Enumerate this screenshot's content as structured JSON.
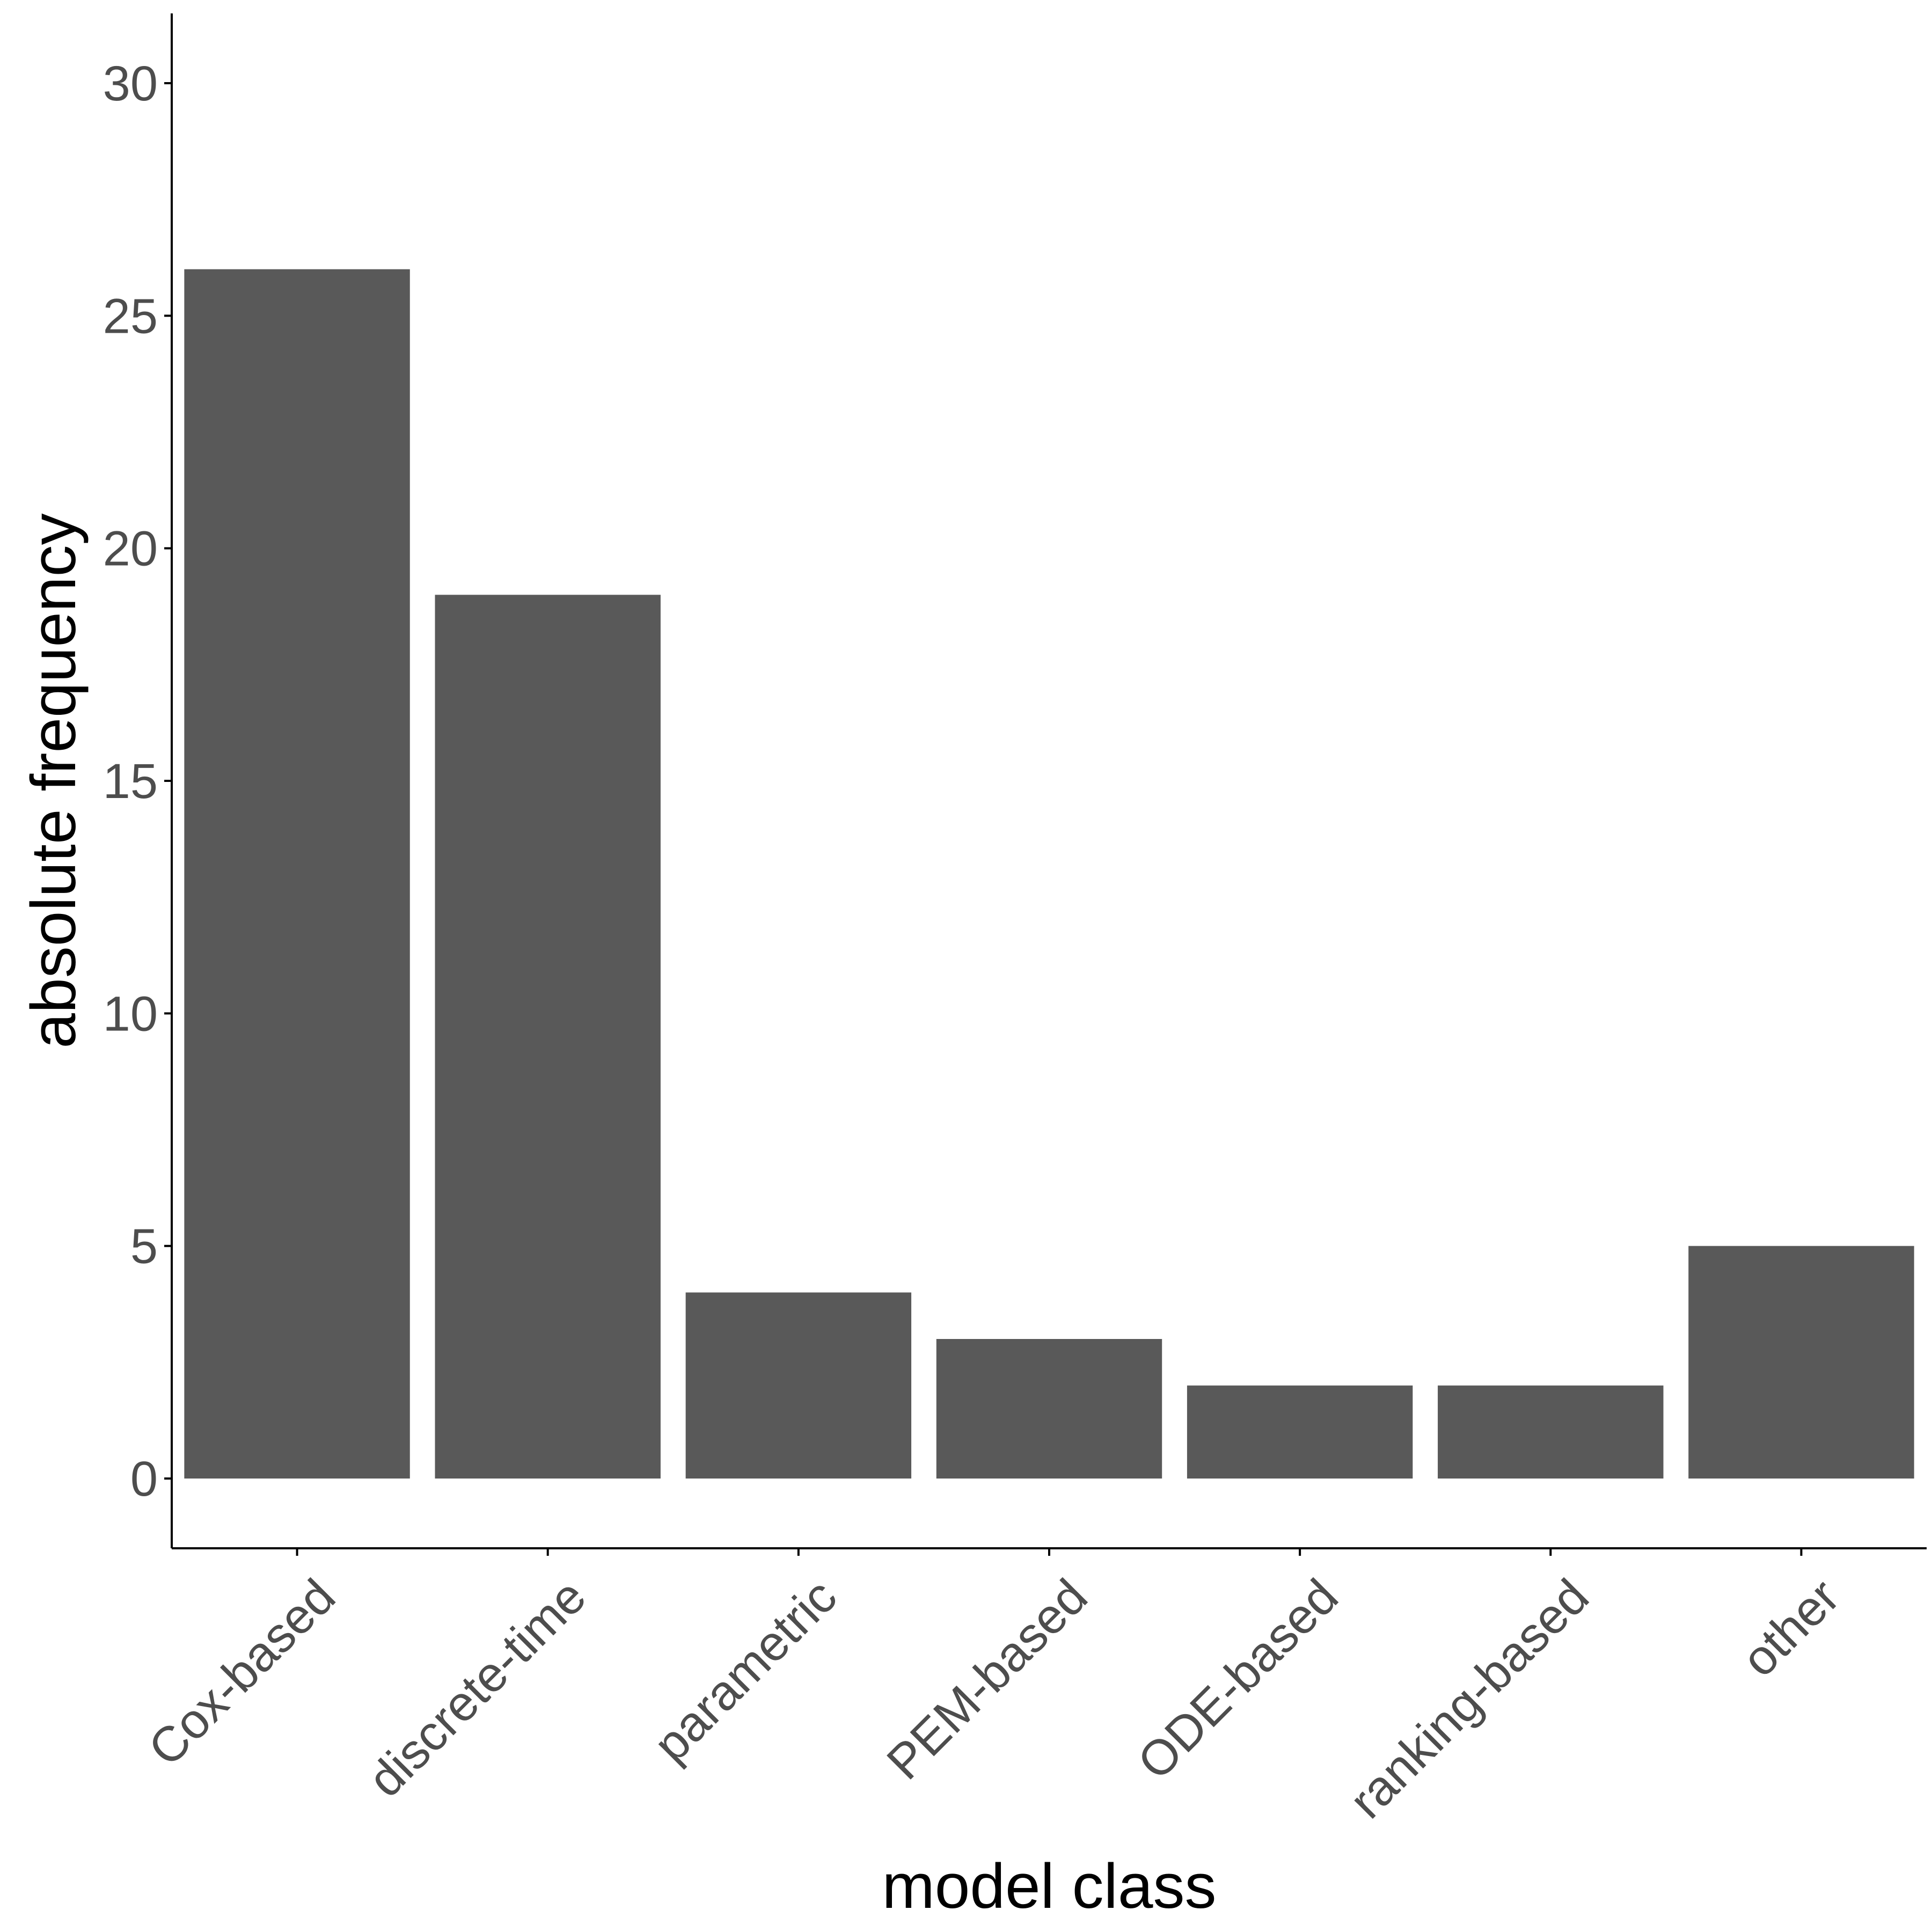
{
  "chart_data": {
    "type": "bar",
    "categories": [
      "Cox-based",
      "discrete-time",
      "parametric",
      "PEM-based",
      "ODE-based",
      "ranking-based",
      "other"
    ],
    "values": [
      26,
      19,
      4,
      3,
      2,
      2,
      5
    ],
    "xlabel": "model class",
    "ylabel": "absolute frequency",
    "ylim": [
      -1.5,
      31.5
    ],
    "yticks": [
      0,
      5,
      10,
      15,
      20,
      25,
      30
    ],
    "bar_color": "#595959",
    "grid": false,
    "legend": "none"
  }
}
